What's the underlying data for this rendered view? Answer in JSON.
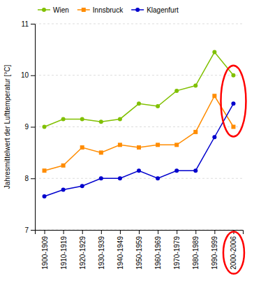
{
  "chart_data": {
    "type": "line",
    "categories": [
      "1900-1909",
      "1910-1919",
      "1920-1929",
      "1930-1939",
      "1940-1949",
      "1950-1959",
      "1960-1969",
      "1970-1979",
      "1980-1989",
      "1990-1999",
      "2000-2006"
    ],
    "series": [
      {
        "name": "Wien",
        "color": "#80c000",
        "marker": "circle",
        "values": [
          9.0,
          9.15,
          9.15,
          9.1,
          9.15,
          9.45,
          9.4,
          9.7,
          9.8,
          10.45,
          10.0
        ]
      },
      {
        "name": "Innsbruck",
        "color": "#ff8c00",
        "marker": "square",
        "values": [
          8.15,
          8.25,
          8.6,
          8.5,
          8.65,
          8.6,
          8.65,
          8.65,
          8.9,
          9.6,
          9.0
        ]
      },
      {
        "name": "Klagenfurt",
        "color": "#0000cd",
        "marker": "circle",
        "values": [
          7.65,
          7.78,
          7.85,
          8.0,
          8.0,
          8.15,
          8.0,
          8.15,
          8.15,
          8.8,
          9.45
        ]
      }
    ],
    "y_label": "Jahresmittelwert der Lufttemperatur [°C]",
    "ylim": [
      7.0,
      11.0
    ],
    "yticks": [
      7,
      8,
      9,
      10,
      11
    ],
    "grid": true,
    "legend": "upper left"
  }
}
